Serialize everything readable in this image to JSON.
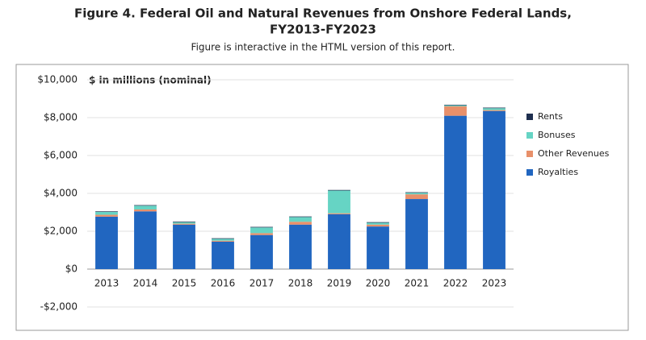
{
  "chart_data": {
    "type": "stacked_bar",
    "title": [
      "Figure 4. Federal Oil and Natural Revenues from Onshore Federal Lands,",
      "FY2013-FY2023"
    ],
    "subtitle": "Figure is interactive in the HTML version of this report.",
    "y_axis_label": "$ in millions (nominal)",
    "categories": [
      "2013",
      "2014",
      "2015",
      "2016",
      "2017",
      "2018",
      "2019",
      "2020",
      "2021",
      "2022",
      "2023"
    ],
    "series": [
      {
        "name": "Royalties",
        "color": "#2166c0",
        "values": [
          2770,
          3050,
          2350,
          1450,
          1800,
          2350,
          2900,
          2250,
          3700,
          8100,
          8350
        ]
      },
      {
        "name": "Other Revenues",
        "color": "#e8906a",
        "values": [
          100,
          100,
          50,
          50,
          100,
          150,
          50,
          100,
          250,
          500,
          50
        ]
      },
      {
        "name": "Bonuses",
        "color": "#66d4c4",
        "values": [
          150,
          200,
          80,
          100,
          300,
          250,
          1200,
          100,
          80,
          50,
          100
        ]
      },
      {
        "name": "Rents",
        "color": "#1f2f4f",
        "values": [
          30,
          30,
          30,
          30,
          30,
          30,
          30,
          30,
          30,
          30,
          30
        ]
      }
    ],
    "ylim": [
      -2000,
      10000
    ],
    "yticks": [
      {
        "value": -2000,
        "label": "-$2,000"
      },
      {
        "value": 0,
        "label": "$0"
      },
      {
        "value": 2000,
        "label": "$2,000"
      },
      {
        "value": 4000,
        "label": "$4,000"
      },
      {
        "value": 6000,
        "label": "$6,000"
      },
      {
        "value": 8000,
        "label": "$8,000"
      },
      {
        "value": 10000,
        "label": "$10,000"
      }
    ],
    "grid": true,
    "legend": "right"
  }
}
